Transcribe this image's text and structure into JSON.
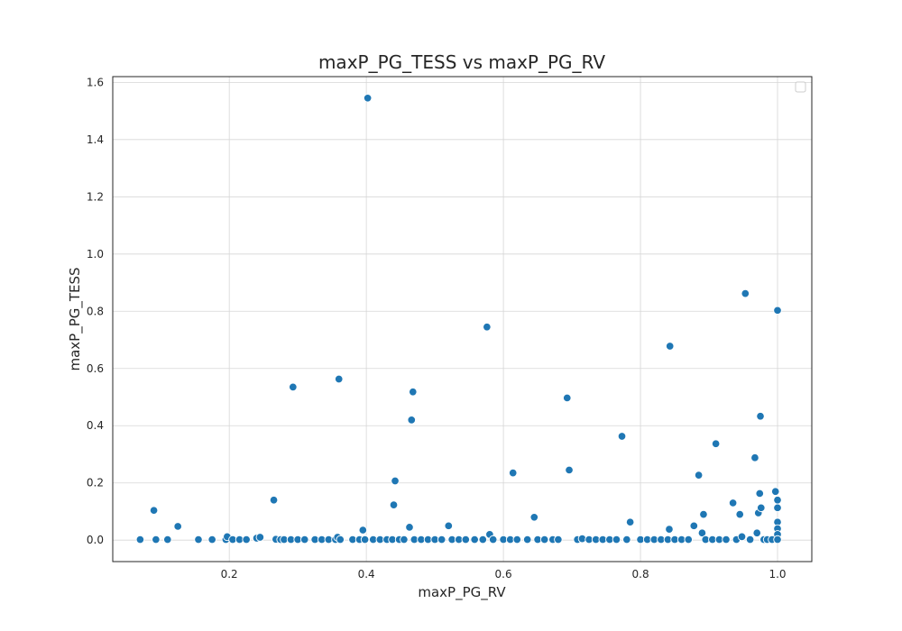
{
  "chart_data": {
    "type": "scatter",
    "title": "maxP_PG_TESS vs maxP_PG_RV",
    "xlabel": "maxP_PG_RV",
    "ylabel": "maxP_PG_TESS",
    "xlim": [
      0.03,
      1.05
    ],
    "ylim": [
      -0.075,
      1.62
    ],
    "xticks": [
      0.2,
      0.4,
      0.6,
      0.8,
      1.0
    ],
    "xtick_labels": [
      "0.2",
      "0.4",
      "0.6",
      "0.8",
      "1.0"
    ],
    "yticks": [
      0.0,
      0.2,
      0.4,
      0.6,
      0.8,
      1.0,
      1.2,
      1.4,
      1.6
    ],
    "ytick_labels": [
      "0.0",
      "0.2",
      "0.4",
      "0.6",
      "0.8",
      "1.0",
      "1.2",
      "1.4",
      "1.6"
    ],
    "grid": true,
    "legend": "top-right",
    "marker_color": "#1f77b4",
    "points": [
      [
        0.07,
        0.002
      ],
      [
        0.09,
        0.104
      ],
      [
        0.093,
        0.002
      ],
      [
        0.11,
        0.002
      ],
      [
        0.125,
        0.048
      ],
      [
        0.155,
        0.002
      ],
      [
        0.175,
        0.002
      ],
      [
        0.195,
        0.002
      ],
      [
        0.197,
        0.012
      ],
      [
        0.205,
        0.002
      ],
      [
        0.215,
        0.002
      ],
      [
        0.225,
        0.002
      ],
      [
        0.24,
        0.007
      ],
      [
        0.245,
        0.01
      ],
      [
        0.265,
        0.14
      ],
      [
        0.268,
        0.003
      ],
      [
        0.275,
        0.002
      ],
      [
        0.28,
        0.002
      ],
      [
        0.29,
        0.002
      ],
      [
        0.293,
        0.535
      ],
      [
        0.3,
        0.002
      ],
      [
        0.31,
        0.002
      ],
      [
        0.325,
        0.002
      ],
      [
        0.335,
        0.002
      ],
      [
        0.345,
        0.002
      ],
      [
        0.355,
        0.002
      ],
      [
        0.358,
        0.01
      ],
      [
        0.36,
        0.563
      ],
      [
        0.362,
        0.002
      ],
      [
        0.38,
        0.002
      ],
      [
        0.39,
        0.002
      ],
      [
        0.395,
        0.035
      ],
      [
        0.398,
        0.002
      ],
      [
        0.402,
        1.545
      ],
      [
        0.41,
        0.002
      ],
      [
        0.42,
        0.002
      ],
      [
        0.43,
        0.002
      ],
      [
        0.438,
        0.002
      ],
      [
        0.44,
        0.123
      ],
      [
        0.442,
        0.207
      ],
      [
        0.448,
        0.002
      ],
      [
        0.455,
        0.002
      ],
      [
        0.463,
        0.045
      ],
      [
        0.466,
        0.42
      ],
      [
        0.468,
        0.518
      ],
      [
        0.47,
        0.002
      ],
      [
        0.48,
        0.002
      ],
      [
        0.49,
        0.002
      ],
      [
        0.5,
        0.002
      ],
      [
        0.51,
        0.002
      ],
      [
        0.52,
        0.05
      ],
      [
        0.525,
        0.002
      ],
      [
        0.535,
        0.002
      ],
      [
        0.545,
        0.002
      ],
      [
        0.558,
        0.002
      ],
      [
        0.57,
        0.002
      ],
      [
        0.576,
        0.745
      ],
      [
        0.58,
        0.02
      ],
      [
        0.585,
        0.002
      ],
      [
        0.6,
        0.002
      ],
      [
        0.61,
        0.002
      ],
      [
        0.614,
        0.235
      ],
      [
        0.62,
        0.002
      ],
      [
        0.635,
        0.002
      ],
      [
        0.645,
        0.08
      ],
      [
        0.65,
        0.002
      ],
      [
        0.66,
        0.002
      ],
      [
        0.672,
        0.002
      ],
      [
        0.68,
        0.002
      ],
      [
        0.693,
        0.497
      ],
      [
        0.696,
        0.245
      ],
      [
        0.708,
        0.002
      ],
      [
        0.715,
        0.005
      ],
      [
        0.725,
        0.002
      ],
      [
        0.735,
        0.002
      ],
      [
        0.745,
        0.002
      ],
      [
        0.755,
        0.002
      ],
      [
        0.765,
        0.002
      ],
      [
        0.773,
        0.363
      ],
      [
        0.78,
        0.002
      ],
      [
        0.785,
        0.063
      ],
      [
        0.8,
        0.002
      ],
      [
        0.81,
        0.002
      ],
      [
        0.82,
        0.002
      ],
      [
        0.83,
        0.002
      ],
      [
        0.84,
        0.002
      ],
      [
        0.842,
        0.038
      ],
      [
        0.843,
        0.678
      ],
      [
        0.85,
        0.002
      ],
      [
        0.86,
        0.002
      ],
      [
        0.87,
        0.002
      ],
      [
        0.878,
        0.05
      ],
      [
        0.885,
        0.227
      ],
      [
        0.89,
        0.025
      ],
      [
        0.892,
        0.09
      ],
      [
        0.895,
        0.002
      ],
      [
        0.905,
        0.002
      ],
      [
        0.91,
        0.337
      ],
      [
        0.915,
        0.002
      ],
      [
        0.925,
        0.002
      ],
      [
        0.935,
        0.13
      ],
      [
        0.94,
        0.002
      ],
      [
        0.945,
        0.09
      ],
      [
        0.948,
        0.012
      ],
      [
        0.953,
        0.862
      ],
      [
        0.96,
        0.002
      ],
      [
        0.967,
        0.288
      ],
      [
        0.97,
        0.025
      ],
      [
        0.972,
        0.095
      ],
      [
        0.974,
        0.163
      ],
      [
        0.975,
        0.433
      ],
      [
        0.976,
        0.113
      ],
      [
        0.98,
        0.002
      ],
      [
        0.985,
        0.002
      ],
      [
        0.992,
        0.002
      ],
      [
        0.997,
        0.17
      ],
      [
        1.0,
        0.803
      ],
      [
        1.0,
        0.14
      ],
      [
        1.0,
        0.113
      ],
      [
        1.0,
        0.063
      ],
      [
        1.0,
        0.04
      ],
      [
        1.0,
        0.02
      ],
      [
        1.0,
        0.002
      ]
    ]
  }
}
